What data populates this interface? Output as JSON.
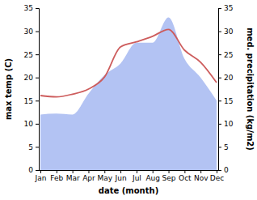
{
  "chart_data": {
    "type": "line",
    "x_label": "date (month)",
    "y_label": "max temp (C)",
    "y2_label": "med. precipitation (kg/m2)",
    "categories": [
      "Jan",
      "Feb",
      "Mar",
      "Apr",
      "May",
      "Jun",
      "Jul",
      "Aug",
      "Sep",
      "Oct",
      "Nov",
      "Dec"
    ],
    "series": [
      {
        "type": "area",
        "axis": "y2",
        "color": "#b3c3f3",
        "values": [
          12,
          12.2,
          12,
          16.5,
          20.5,
          23,
          27.5,
          27.5,
          33,
          24,
          20,
          15
        ]
      },
      {
        "type": "line",
        "color": "#cd5c5c",
        "values": [
          16.1,
          15.8,
          16.4,
          17.5,
          20.1,
          26.6,
          27.7,
          28.9,
          30.4,
          25.9,
          23.3,
          18.9
        ]
      }
    ],
    "ylim": [
      0,
      35
    ],
    "yticks": [
      0,
      5,
      10,
      15,
      20,
      25,
      30,
      35
    ],
    "y2lim": [
      0,
      35
    ],
    "y2ticks": [
      0,
      5,
      10,
      15,
      20,
      25,
      30,
      35
    ],
    "grid": false
  }
}
